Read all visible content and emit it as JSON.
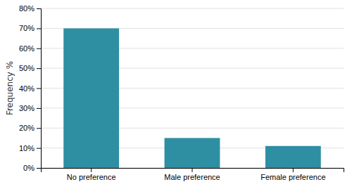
{
  "chart_data": {
    "type": "bar",
    "categories": [
      "No preference",
      "Male preference",
      "Female preference"
    ],
    "values": [
      70,
      15,
      11
    ],
    "color": "#2e8fa3",
    "ylabel": "Frequency %",
    "ylim": [
      0,
      80
    ],
    "yticks": [
      {
        "value": 0,
        "label": "0%"
      },
      {
        "value": 10,
        "label": "10%"
      },
      {
        "value": 20,
        "label": "20%"
      },
      {
        "value": 30,
        "label": "30%"
      },
      {
        "value": 40,
        "label": "40%"
      },
      {
        "value": 50,
        "label": "50%"
      },
      {
        "value": 60,
        "label": "60%"
      },
      {
        "value": 70,
        "label": "70%"
      },
      {
        "value": 80,
        "label": "80%"
      }
    ],
    "grid": true
  }
}
